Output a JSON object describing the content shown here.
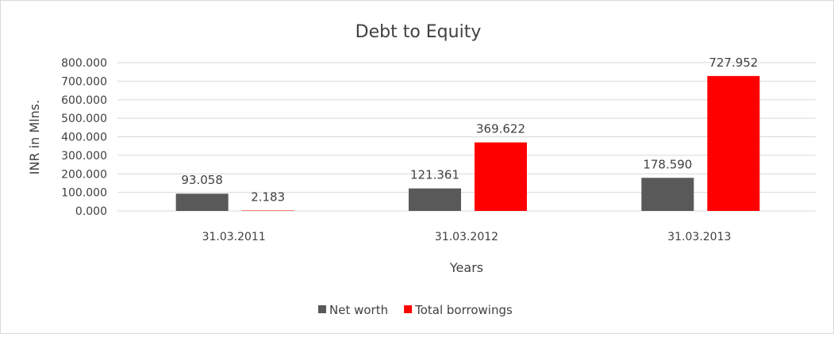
{
  "chart_data": {
    "type": "bar",
    "title": "Debt to Equity",
    "xlabel": "Years",
    "ylabel": "INR in Mlns.",
    "categories": [
      "31.03.2011",
      "31.03.2012",
      "31.03.2013"
    ],
    "series": [
      {
        "name": "Net worth",
        "color": "#595959",
        "values": [
          93.058,
          121.361,
          178.59
        ],
        "labels": [
          "93.058",
          "121.361",
          "178.590"
        ]
      },
      {
        "name": "Total borrowings",
        "color": "#ff0000",
        "values": [
          2.183,
          369.622,
          727.952
        ],
        "labels": [
          "2.183",
          "369.622",
          "727.952"
        ]
      }
    ],
    "ylim": [
      0,
      800
    ],
    "yticks": [
      "0.000",
      "100.000",
      "200.000",
      "300.000",
      "400.000",
      "500.000",
      "600.000",
      "700.000",
      "800.000"
    ],
    "grid": true,
    "legend": "bottom"
  }
}
